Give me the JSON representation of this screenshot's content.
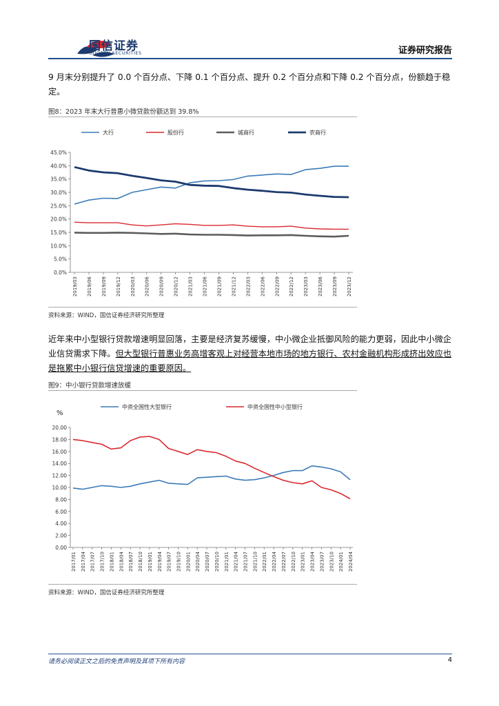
{
  "header": {
    "logo_cn": "国信证券",
    "logo_en": "GUOSEN SECURITIES",
    "report_type": "证券研究报告"
  },
  "para1": "9 月末分别提升了 0.0 个百分点、下降 0.1 个百分点、提升 0.2 个百分点和下降 0.2 个百分点，份额趋于稳定。",
  "fig8": {
    "title": "图8：2023 年末大行普惠小微贷款份额达到 39.8%",
    "source": "资料来源：WIND，国信证券经济研究所整理"
  },
  "para2": {
    "plain": "近年来中小型银行贷款增速明显回落，主要是经济复苏缓慢，中小微企业抵御风险的能力更弱，因此中小微企业信贷需求下降。",
    "underlined": "但大型银行普惠业务高增客观上对经营本地市场的地方银行、农村金融机构形成挤出效应也是拖累中小银行信贷增速的重要原因。"
  },
  "fig9": {
    "title": "图9：中小银行贷款增速放缓",
    "source": "资料来源：WIND，国信证券经济研究所整理"
  },
  "footer": {
    "disclaimer": "请务必阅读正文之后的免责声明及其项下所有内容",
    "page_number": "4"
  },
  "chart_data": [
    {
      "type": "line",
      "title": "图8：2023 年末大行普惠小微贷款份额达到 39.8%",
      "legend_position": "top",
      "x_ticks": [
        "2019/03",
        "2019/06",
        "2019/09",
        "2019/12",
        "2020/03",
        "2020/06",
        "2020/09",
        "2020/12",
        "2021/03",
        "2021/06",
        "2021/09",
        "2021/12",
        "2022/03",
        "2022/06",
        "2022/09",
        "2022/12",
        "2023/03",
        "2023/06",
        "2023/09",
        "2023/12"
      ],
      "y_ticks": [
        "0.0%",
        "5.0%",
        "10.0%",
        "15.0%",
        "20.0%",
        "25.0%",
        "30.0%",
        "35.0%",
        "40.0%",
        "45.0%"
      ],
      "ylim": [
        0,
        45
      ],
      "grid": false,
      "series": [
        {
          "name": "大行",
          "color": "#3a7ab8",
          "width": 1.6,
          "values": [
            25.6,
            27.1,
            27.8,
            27.7,
            30.0,
            31.0,
            32.0,
            31.6,
            33.6,
            34.3,
            34.4,
            34.8,
            36.1,
            36.5,
            36.9,
            36.7,
            38.5,
            39.0,
            39.8,
            39.8
          ]
        },
        {
          "name": "股份行",
          "color": "#d9272e",
          "width": 1.4,
          "values": [
            18.8,
            18.6,
            18.6,
            18.6,
            17.8,
            17.4,
            17.8,
            18.2,
            18.0,
            17.6,
            17.6,
            17.8,
            17.3,
            17.1,
            17.1,
            17.3,
            16.6,
            16.3,
            16.2,
            16.2
          ]
        },
        {
          "name": "城商行",
          "color": "#5c5c5c",
          "width": 2.6,
          "values": [
            14.9,
            14.8,
            14.8,
            14.9,
            14.8,
            14.6,
            14.4,
            14.5,
            14.2,
            14.1,
            14.1,
            14.0,
            13.8,
            13.9,
            13.9,
            14.0,
            13.7,
            13.5,
            13.4,
            13.7
          ]
        },
        {
          "name": "农商行",
          "color": "#1c3a6e",
          "width": 2.8,
          "values": [
            39.5,
            38.2,
            37.5,
            37.2,
            36.2,
            35.4,
            34.5,
            34.0,
            32.8,
            32.5,
            32.4,
            31.6,
            31.0,
            30.6,
            30.1,
            29.9,
            29.2,
            28.7,
            28.3,
            28.2
          ]
        }
      ]
    },
    {
      "type": "line",
      "title": "图9：中小银行贷款增速放缓",
      "ylabel": "%",
      "legend_position": "top",
      "x_ticks": [
        "2017/01",
        "2017/04",
        "2017/07",
        "2017/10",
        "2018/01",
        "2018/04",
        "2018/07",
        "2018/10",
        "2019/01",
        "2019/04",
        "2019/07",
        "2019/10",
        "2020/01",
        "2020/04",
        "2020/07",
        "2020/10",
        "2021/01",
        "2021/04",
        "2021/07",
        "2021/10",
        "2022/01",
        "2022/04",
        "2022/07",
        "2022/10",
        "2023/01",
        "2023/04",
        "2023/07",
        "2023/10",
        "2024/01",
        "2024/04"
      ],
      "y_ticks": [
        "0.00",
        "2.00",
        "4.00",
        "6.00",
        "8.00",
        "10.00",
        "12.00",
        "14.00",
        "16.00",
        "18.00",
        "20.00"
      ],
      "ylim": [
        0,
        20
      ],
      "grid": false,
      "series": [
        {
          "name": "中资全国性大型银行",
          "color": "#3a7ab8",
          "width": 1.6,
          "values": [
            9.9,
            9.7,
            10.0,
            10.3,
            10.2,
            10.0,
            10.2,
            10.6,
            10.9,
            11.2,
            10.7,
            10.6,
            10.5,
            11.6,
            11.7,
            11.8,
            11.9,
            11.4,
            11.2,
            11.3,
            11.6,
            12.0,
            12.5,
            12.8,
            12.8,
            13.6,
            13.4,
            13.1,
            12.6,
            11.3
          ]
        },
        {
          "name": "中资全国性中小型银行",
          "color": "#d9272e",
          "width": 1.6,
          "values": [
            18.0,
            17.8,
            17.5,
            17.2,
            16.4,
            16.6,
            17.8,
            18.4,
            18.5,
            18.0,
            16.5,
            16.0,
            15.5,
            16.3,
            16.0,
            15.8,
            15.2,
            14.4,
            14.0,
            13.2,
            12.5,
            11.8,
            11.2,
            10.8,
            10.6,
            11.1,
            10.0,
            9.6,
            9.0,
            8.1
          ]
        }
      ]
    }
  ]
}
